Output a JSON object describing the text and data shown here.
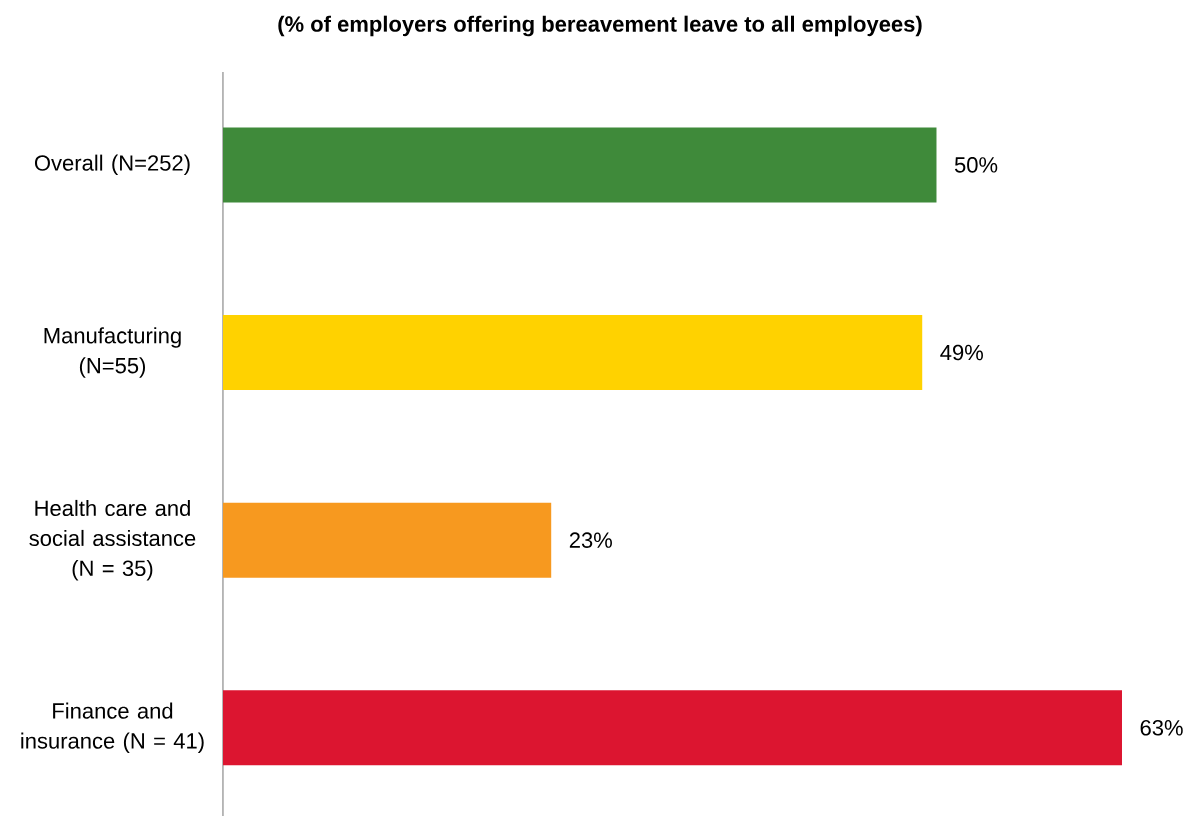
{
  "chart_data": {
    "type": "bar",
    "orientation": "horizontal",
    "title": "(% of employers offering bereavement leave to all employees)",
    "categories": [
      "Overall (N=252)",
      "Manufacturing (N=55)",
      "Health care and social assistance (N = 35)",
      "Finance and insurance (N = 41)"
    ],
    "values": [
      50,
      49,
      23,
      63
    ],
    "value_labels": [
      "50%",
      "49%",
      "23%",
      "63%"
    ],
    "colors": [
      "#3f8a3a",
      "#ffd200",
      "#f7991f",
      "#dc1530"
    ]
  }
}
